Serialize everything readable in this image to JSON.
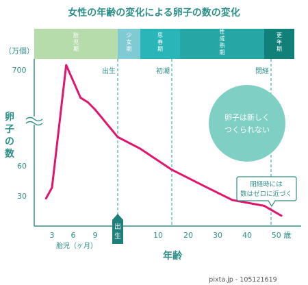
{
  "title": "女性の年齢の変化による卵子の数の変化",
  "unit_label": "（万個）",
  "y_axis_label": [
    "卵",
    "子",
    "の",
    "数"
  ],
  "x_axis_label": "年齢",
  "fetal_label": "胎児（ヶ月）",
  "stages": [
    {
      "label": [
        "胎",
        "児",
        "期"
      ],
      "x_start": 0,
      "x_end": 10,
      "color": "#b5dcaa"
    },
    {
      "label": [
        "少",
        "女",
        "期"
      ],
      "x_start": 10,
      "x_end": 13,
      "color": "#7fcad3"
    },
    {
      "label": [
        "思",
        "春",
        "期"
      ],
      "x_start": 13,
      "x_end": 18,
      "color": "#2ab5b8"
    },
    {
      "label": [
        "性",
        "成",
        "熟",
        "期"
      ],
      "x_start": 18,
      "x_end": 45,
      "color": "#26a7a6"
    },
    {
      "label": [
        "更",
        "年",
        "期"
      ],
      "x_start": 45,
      "x_end": 52,
      "color": "#108078"
    }
  ],
  "markers": [
    {
      "label": "出生",
      "x": 10
    },
    {
      "label": "初潮",
      "x": 17
    },
    {
      "label": "閉経",
      "x": 48
    }
  ],
  "birth_tag": [
    "出",
    "生"
  ],
  "bubble_text": [
    "卵子は新しく",
    "つくられない"
  ],
  "callout_text": [
    "閉経時には",
    "数はゼロに近づく"
  ],
  "footer": "pixta.jp - 105121619",
  "colors": {
    "line": "#e0156f",
    "teal": "#2e8f89",
    "bubble": "#7fcfc4",
    "dashed": "#3fb3ab"
  },
  "chart_data": {
    "type": "line",
    "title": "女性の年齢の変化による卵子の数の変化",
    "xlabel": "年齢",
    "ylabel": "卵子の数",
    "unit": "万個",
    "y_broken_axis": true,
    "x_tick_labels": [
      "3",
      "6",
      "9",
      "10",
      "20",
      "30",
      "40",
      "50 歳"
    ],
    "y_tick_labels": [
      "700",
      "60",
      "30"
    ],
    "series": [
      {
        "name": "",
        "x_labels": [
          "2",
          "3",
          "5",
          "7",
          "8",
          "9",
          "10",
          "13",
          "17",
          "25",
          "35",
          "45",
          "50"
        ],
        "values": [
          27,
          38,
          700,
          480,
          450,
          400,
          130,
          100,
          55,
          40,
          25,
          18,
          6
        ]
      }
    ]
  }
}
